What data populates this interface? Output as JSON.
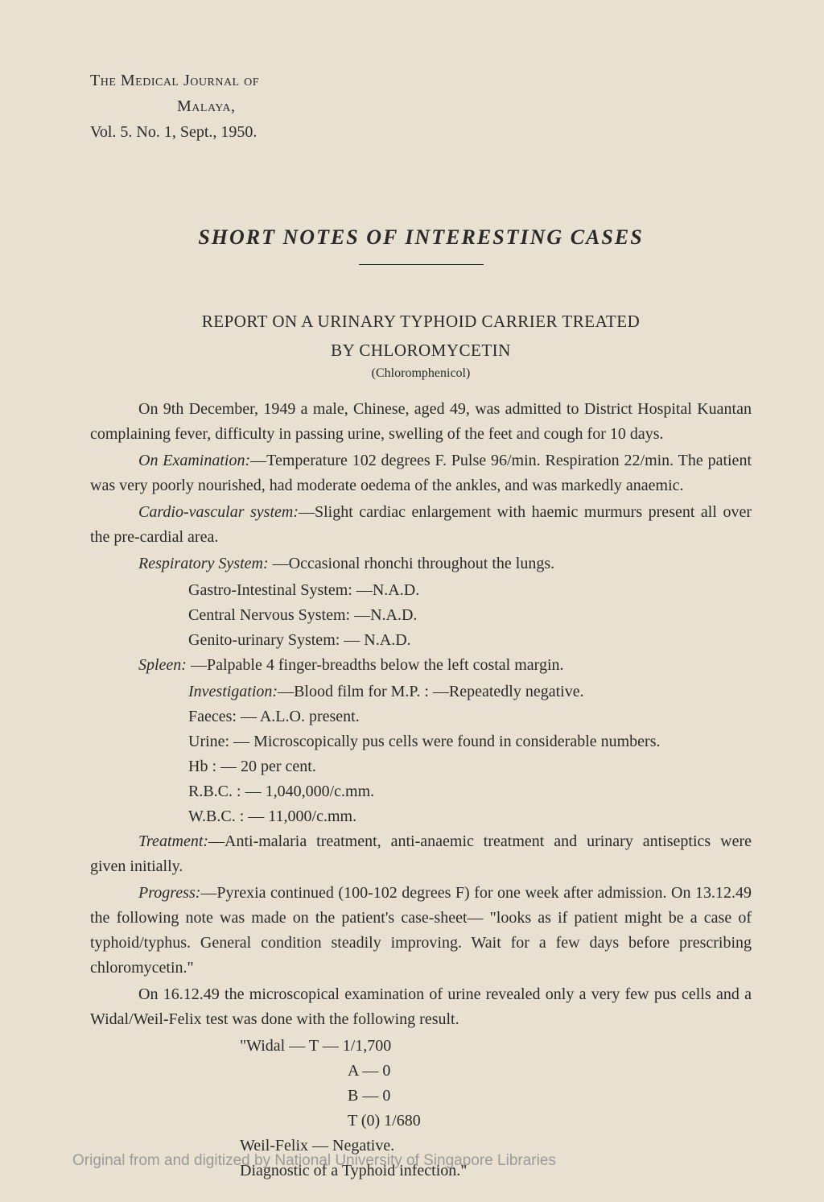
{
  "header": {
    "journal_line1": "The Medical Journal of",
    "journal_line2": "Malaya,",
    "volume": "Vol. 5. No. 1, Sept., 1950."
  },
  "title": {
    "main": "SHORT  NOTES  OF  INTERESTING  CASES",
    "report_line1": "REPORT ON A URINARY TYPHOID CARRIER TREATED",
    "report_line2": "BY CHLOROMYCETIN",
    "subtitle": "(Chloromphenicol)"
  },
  "paragraphs": {
    "p1": "On 9th December, 1949 a male, Chinese, aged 49, was admitted to District Hospital Kuantan complaining fever, difficulty in passing urine, swelling of the feet and cough for 10 days.",
    "p2_label": "On Examination:",
    "p2_text": "—Temperature 102 degrees F. Pulse 96/min. Respiration 22/min. The patient was very poorly nourished, had moderate oedema of the ankles, and was markedly anaemic.",
    "p3_label": "Cardio-vascular system:",
    "p3_text": "—Slight cardiac enlargement with haemic murmurs present all over the pre-cardial area.",
    "p4_label": "Respiratory System:",
    "p4_text": " —Occasional rhonchi throughout the lungs.",
    "sys1": "Gastro-Intestinal System: —N.A.D.",
    "sys2": "Central Nervous System: —N.A.D.",
    "sys3": "Genito-urinary System: —   N.A.D.",
    "p5_label": "Spleen:",
    "p5_text": " —Palpable 4 finger-breadths below the left costal margin.",
    "inv_label": "Investigation:",
    "inv_text": "—Blood film for M.P. : —Repeatedly negative.",
    "faeces": "Faeces: —   A.L.O. present.",
    "urine": "Urine: —   Microscopically pus cells were found in considerable numbers.",
    "hb": "Hb  : —   20 per cent.",
    "rbc": "R.B.C.  : —   1,040,000/c.mm.",
    "wbc": "W.B.C.  : —   11,000/c.mm.",
    "treat_label": "Treatment:",
    "treat_text": "—Anti-malaria treatment, anti-anaemic treatment and urinary antiseptics were given initially.",
    "prog_label": "Progress:",
    "prog_text": "—Pyrexia continued (100-102 degrees F) for one week after admission. On 13.12.49 the following note was made on the patient's case-sheet— \"looks as if patient might be a case of typhoid/typhus. General condition steadily improving. Wait for a few days before prescribing chloromycetin.\"",
    "p_final": "On 16.12.49 the microscopical examination of urine revealed only a very few pus cells and a Widal/Weil-Felix test was done with the following result.",
    "widal1": "\"Widal   — T —   1/1,700",
    "widal2": "A —   0",
    "widal3": "B —   0",
    "widal4": "T  (0)  1/680",
    "weil": "Weil-Felix   —   Negative.",
    "diag": "Diagnostic of a Typhoid infection.\""
  },
  "footer": "Original from and digitized by National University of Singapore Libraries",
  "colors": {
    "background": "#e8e0d0",
    "text": "#2a2a2a",
    "footer_text": "#9a9a9a"
  }
}
